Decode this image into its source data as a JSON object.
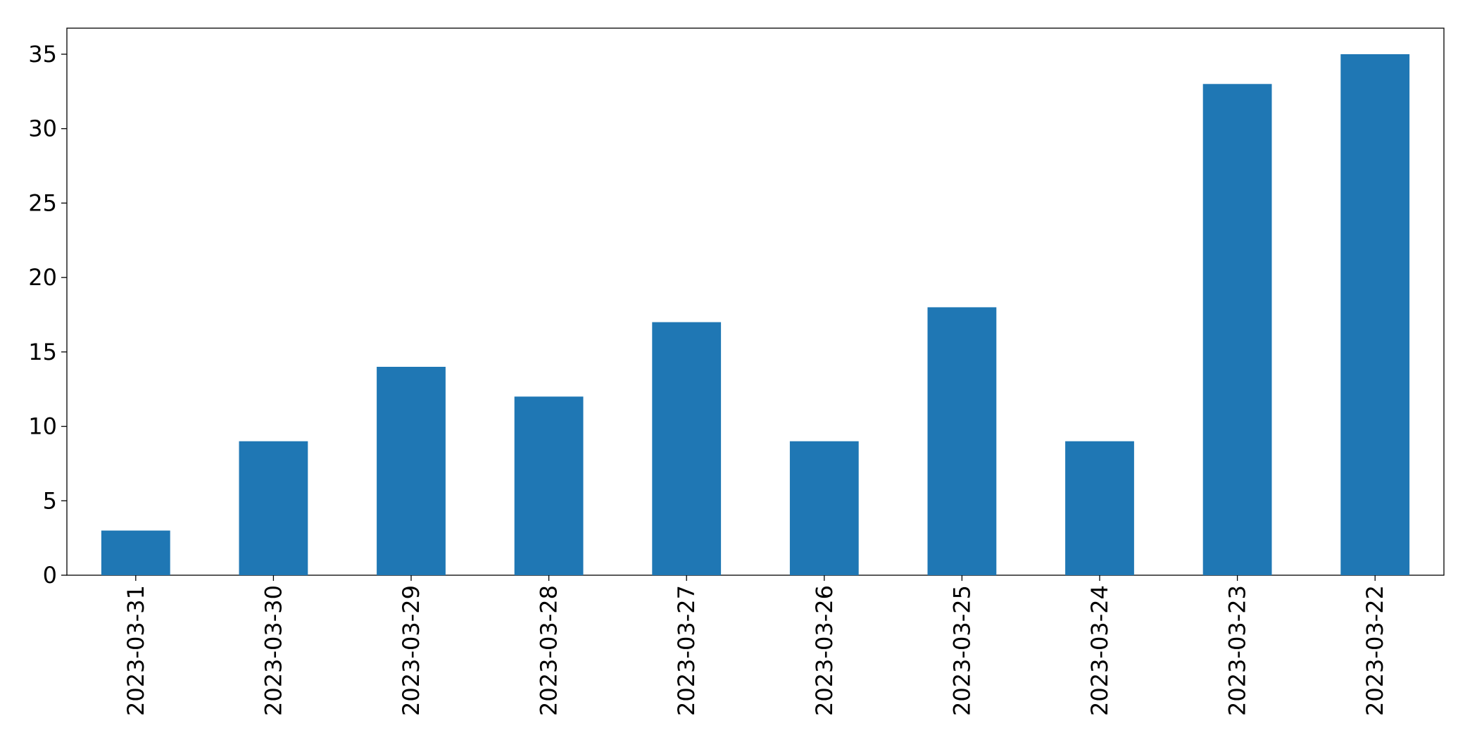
{
  "chart_data": {
    "type": "bar",
    "categories": [
      "2023-03-31",
      "2023-03-30",
      "2023-03-29",
      "2023-03-28",
      "2023-03-27",
      "2023-03-26",
      "2023-03-25",
      "2023-03-24",
      "2023-03-23",
      "2023-03-22"
    ],
    "values": [
      3,
      9,
      14,
      12,
      17,
      9,
      18,
      9,
      33,
      35
    ],
    "color": "#1f77b4",
    "ylim": [
      0,
      36.75
    ],
    "yticks": [
      0,
      5,
      10,
      15,
      20,
      25,
      30,
      35
    ],
    "grid": false
  }
}
